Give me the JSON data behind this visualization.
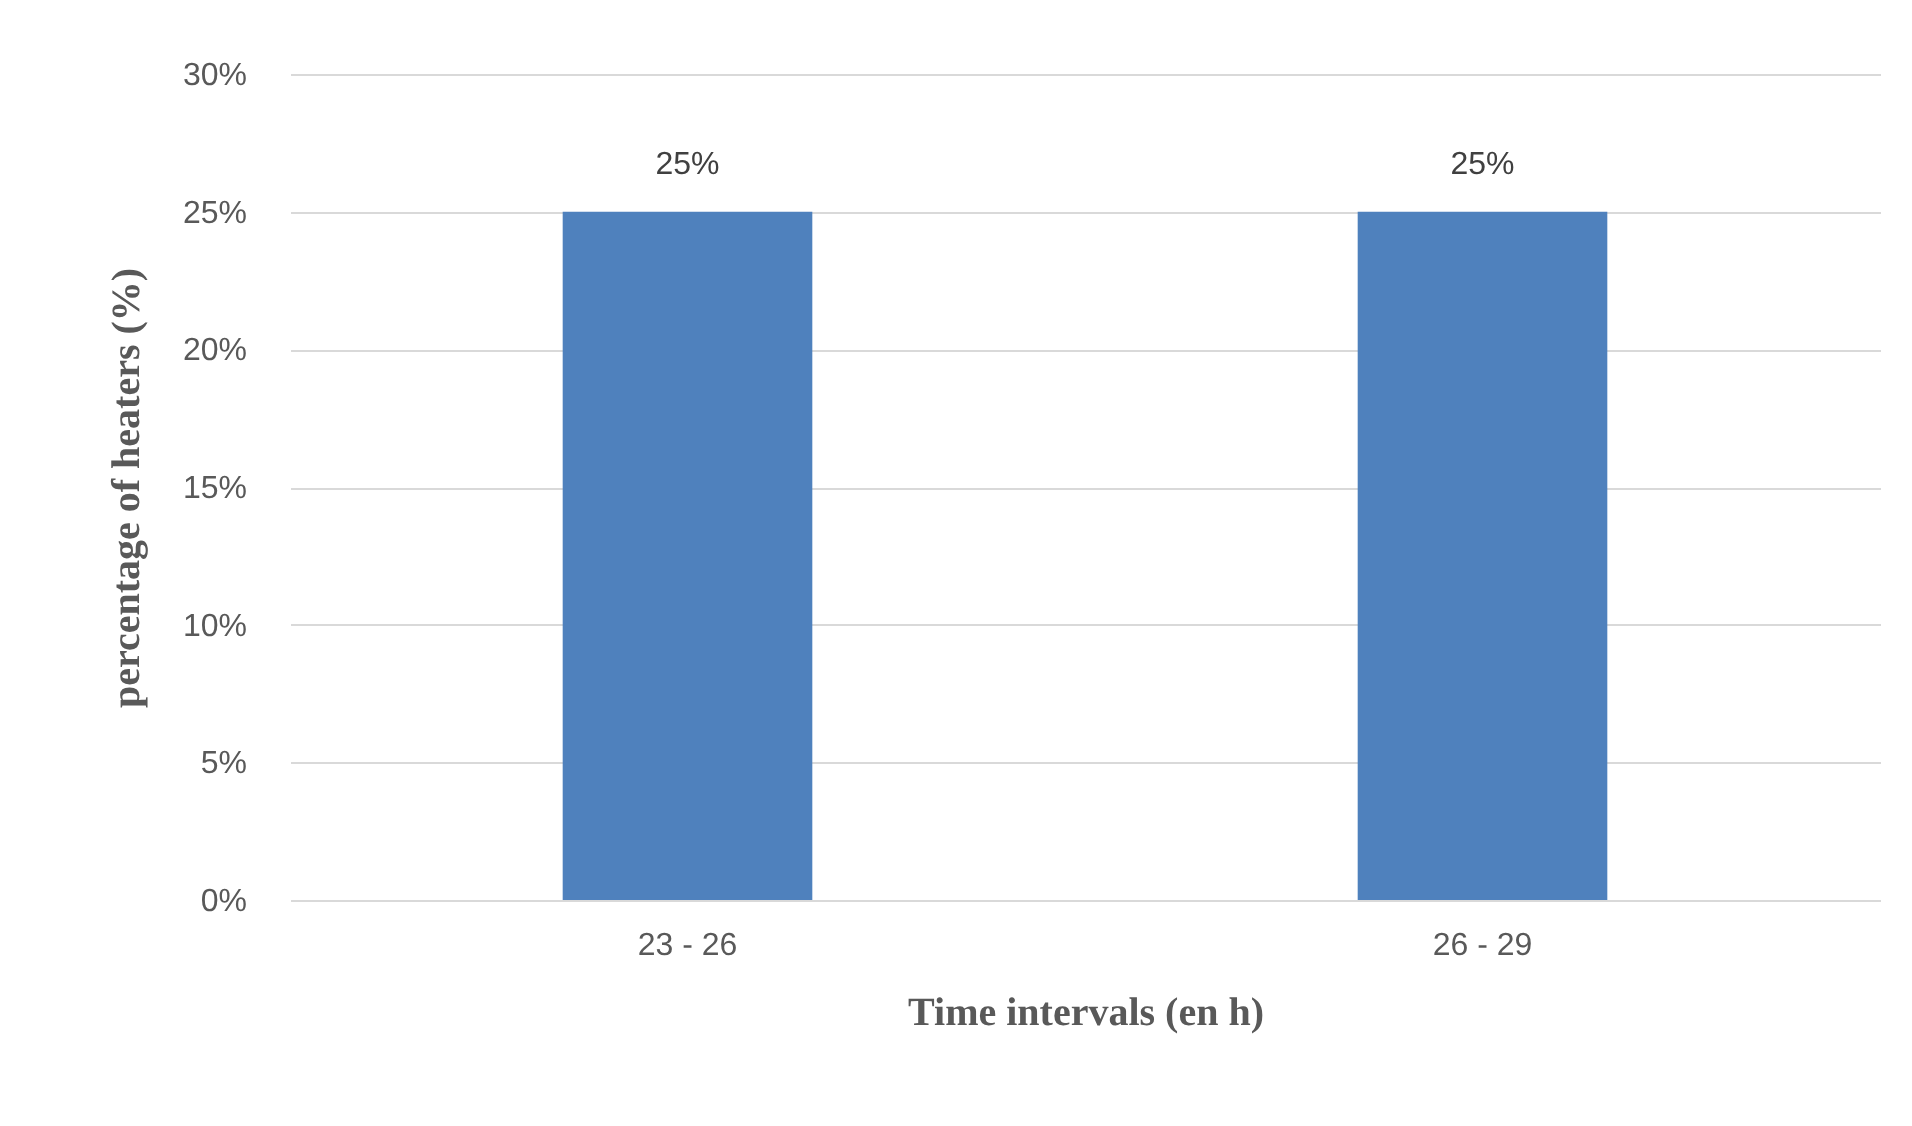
{
  "chart_data": {
    "type": "bar",
    "xlabel": "Time intervals (en h)",
    "ylabel": "percentage of heaters (%)",
    "categories": [
      "23 - 26",
      "26 - 29"
    ],
    "values": [
      25,
      25
    ],
    "value_labels": [
      "25%",
      "25%"
    ],
    "color": "#4f81bd",
    "ylim": [
      0,
      30
    ],
    "yticks": [
      {
        "value": 0,
        "label": "0%"
      },
      {
        "value": 5,
        "label": "5%"
      },
      {
        "value": 10,
        "label": "10%"
      },
      {
        "value": 15,
        "label": "15%"
      },
      {
        "value": 20,
        "label": "20%"
      },
      {
        "value": 25,
        "label": "25%"
      },
      {
        "value": 30,
        "label": "30%"
      }
    ],
    "grid": "y"
  }
}
